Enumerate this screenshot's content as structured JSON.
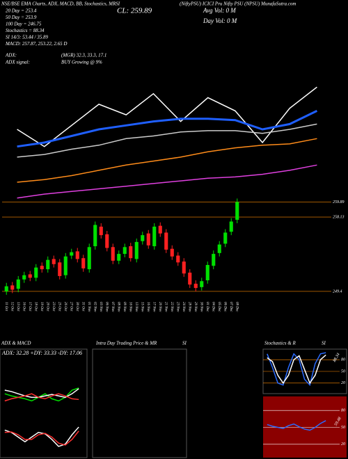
{
  "header": {
    "source": "NSE/BSE EMA Charts, ADX, MACD, BB, Stochastics, MRSI",
    "name": "(NiftyPSU) ICICI Pru Nifty PSU (NPSU) MunafaSutra.com",
    "close": "CL: 259.89",
    "avg_vol": "Avg Vol: 0  M",
    "day_vol": "Day Vol: 0  M",
    "lines": [
      "20 Day = 253.4",
      "50 Day = 253.9",
      "100 Day = 246.75",
      "Stochastics = 88.34",
      "SI 14/3: 53.44 / 35.89",
      "MACD: 257.87, 253.22, 2.65 D"
    ],
    "adx": "ADX:",
    "adx_value": "(MGR) 32.3, 33.3, 17.1",
    "adx_signal": "ADX  signal:",
    "adx_signal_value": "BUY Growing @ 9%"
  },
  "panels": {
    "adx_macd": "ADX  & MACD",
    "intraday": "Intra  Day Trading Price  & MR",
    "intraday_si": "SI",
    "stoch": "Stochastics & R",
    "stoch_si": "SI",
    "adx_readout": "ADX: 32.28  +DY: 33.33  -DY: 17.06",
    "stoch_value": "88.34",
    "rsi_value": "59.48"
  },
  "chart_data": [
    {
      "type": "candlestick",
      "categories": [
        "11 Oct",
        "12 Oct",
        "13 Oct",
        "16 Oct",
        "17 Oct",
        "18 Oct",
        "19 Oct",
        "20 Oct",
        "23 Oct",
        "25 Oct",
        "26 Oct",
        "27 Oct",
        "30 Oct",
        "31 Oct",
        "01 Nov",
        "02 Nov",
        "03 Nov",
        "06 Nov",
        "07 Nov",
        "08 Nov",
        "09 Nov",
        "10 Nov",
        "13 Nov",
        "15 Nov",
        "16 Nov",
        "17 Nov",
        "20 Nov",
        "21 Nov",
        "22 Nov",
        "23 Nov",
        "24 Nov",
        "28 Nov",
        "29 Nov",
        "30 Nov",
        "01 Dec",
        "04 Dec",
        "05 Dec",
        "06 Dec",
        "07 Dec",
        "08 Dec"
      ],
      "open": [
        249.4,
        250.1,
        249.7,
        250.8,
        251.4,
        251.0,
        252.4,
        252.0,
        253.2,
        252.8,
        251.3,
        253.6,
        254.1,
        253.3,
        252.0,
        254.7,
        257.0,
        256.1,
        254.6,
        253.0,
        253.8,
        254.7,
        253.2,
        255.3,
        256.2,
        254.7,
        257.1,
        256.3,
        254.4,
        253.6,
        252.9,
        251.6,
        250.3,
        249.9,
        250.7,
        252.4,
        253.9,
        255.0,
        256.4,
        257.8
      ],
      "high": [
        250.4,
        250.5,
        251.2,
        251.7,
        251.8,
        252.6,
        252.8,
        253.5,
        253.6,
        253.2,
        253.9,
        254.4,
        254.5,
        253.7,
        255.0,
        257.6,
        257.4,
        256.5,
        255.0,
        254.2,
        255.0,
        255.1,
        255.6,
        256.4,
        256.6,
        257.4,
        257.5,
        256.7,
        254.8,
        254.0,
        253.3,
        252.0,
        250.7,
        251.0,
        252.9,
        254.2,
        255.3,
        256.7,
        258.0,
        260.3
      ],
      "low": [
        249.0,
        249.2,
        249.3,
        250.4,
        250.6,
        250.6,
        251.6,
        251.6,
        252.2,
        250.8,
        250.9,
        253.2,
        252.8,
        251.7,
        251.6,
        254.3,
        255.6,
        254.1,
        252.6,
        252.6,
        253.4,
        252.9,
        252.8,
        254.9,
        254.4,
        254.3,
        255.8,
        253.9,
        253.1,
        252.4,
        251.1,
        249.8,
        249.4,
        249.5,
        250.3,
        252.0,
        253.5,
        254.6,
        256.0,
        257.4
      ],
      "close": [
        250.0,
        249.6,
        250.8,
        251.3,
        251.0,
        252.2,
        252.0,
        253.1,
        252.6,
        251.2,
        253.5,
        254.0,
        253.2,
        252.1,
        254.6,
        257.2,
        256.0,
        254.5,
        253.0,
        253.8,
        254.6,
        253.3,
        255.2,
        256.0,
        254.8,
        257.0,
        256.2,
        254.3,
        253.5,
        252.8,
        251.5,
        250.2,
        249.8,
        250.6,
        252.5,
        253.8,
        254.9,
        256.3,
        257.6,
        259.89
      ],
      "up_color": "#00e000",
      "down_color": "#ff2020",
      "ylim": [
        248.5,
        260.5
      ],
      "yticks": [
        259.89,
        258.13,
        249.4
      ],
      "grid": true,
      "grid_color": "#ff8c00"
    },
    {
      "type": "line",
      "categories": [
        null,
        null,
        null,
        null,
        null,
        null,
        null,
        null,
        null,
        null,
        null,
        null
      ],
      "ylim": [
        0,
        100
      ],
      "series": [
        {
          "color": "#ffffff",
          "values": [
            60,
            47,
            63,
            79,
            71,
            87,
            66,
            84,
            74,
            50,
            76,
            92
          ]
        },
        {
          "color": "#1f5fff",
          "values": [
            47,
            50,
            55,
            60,
            63,
            66,
            68,
            68,
            67,
            60,
            64,
            74
          ]
        },
        {
          "color": "#cccccc",
          "values": [
            39,
            41,
            45,
            48,
            53,
            55,
            58,
            59,
            59,
            57,
            60,
            64
          ]
        },
        {
          "color": "#ff8c1a",
          "values": [
            20,
            22,
            25,
            29,
            33,
            36,
            39,
            43,
            46,
            48,
            49,
            53
          ]
        },
        {
          "color": "#e040e0",
          "values": [
            8,
            11,
            13,
            15,
            17,
            19,
            21,
            23,
            24,
            26,
            29,
            33
          ]
        }
      ]
    },
    {
      "type": "line",
      "categories": [
        null,
        null,
        null,
        null,
        null,
        null,
        null,
        null,
        null,
        null,
        null,
        null
      ],
      "ylim": [
        0,
        60
      ],
      "series": [
        {
          "color": "#00e000",
          "values": [
            25,
            22,
            20,
            18,
            15,
            20,
            25,
            18,
            15,
            20,
            30,
            33
          ]
        },
        {
          "color": "#ffffff",
          "values": [
            30,
            28,
            25,
            22,
            20,
            20,
            22,
            24,
            22,
            20,
            25,
            32
          ]
        },
        {
          "color": "#ff3030",
          "values": [
            15,
            18,
            20,
            22,
            25,
            20,
            18,
            22,
            25,
            22,
            18,
            17
          ]
        }
      ]
    },
    {
      "type": "line",
      "categories": [
        null,
        null,
        null,
        null,
        null,
        null,
        null,
        null,
        null,
        null,
        null,
        null
      ],
      "ylim": [
        -3,
        4
      ],
      "series": [
        {
          "color": "#ffffff",
          "values": [
            2,
            1.5,
            0.5,
            -0.5,
            0.5,
            1.5,
            1.2,
            0,
            -1.5,
            -1,
            1,
            2.65
          ]
        },
        {
          "color": "#ff3030",
          "values": [
            1.5,
            1.6,
            1.0,
            0,
            0,
            1,
            1.3,
            0.5,
            -0.8,
            -1.2,
            0,
            1.8
          ]
        }
      ]
    },
    {
      "type": "line",
      "categories": [
        null,
        null,
        null,
        null,
        null,
        null,
        null,
        null,
        null,
        null,
        null,
        null
      ],
      "ylim": [
        0,
        100
      ],
      "yticks": [
        80,
        50,
        20
      ],
      "grid": true,
      "grid_color": "#ff8c00",
      "series": [
        {
          "color": "#2a6bff",
          "values": [
            95,
            60,
            20,
            15,
            60,
            95,
            80,
            30,
            15,
            70,
            95,
            98
          ]
        },
        {
          "color": "#ffffff",
          "values": [
            85,
            75,
            40,
            20,
            40,
            80,
            90,
            55,
            20,
            40,
            80,
            92
          ]
        }
      ]
    },
    {
      "type": "line",
      "categories": [
        null,
        null,
        null,
        null,
        null,
        null,
        null,
        null,
        null,
        null,
        null,
        null
      ],
      "ylim": [
        0,
        100
      ],
      "yticks": [
        80,
        50,
        20
      ],
      "grid": true,
      "grid_color": "#ffffff",
      "background": "#8b0000",
      "series": [
        {
          "color": "#2a6bff",
          "values": [
            55,
            52,
            50,
            48,
            53,
            56,
            51,
            47,
            45,
            50,
            57,
            62
          ]
        }
      ]
    }
  ]
}
